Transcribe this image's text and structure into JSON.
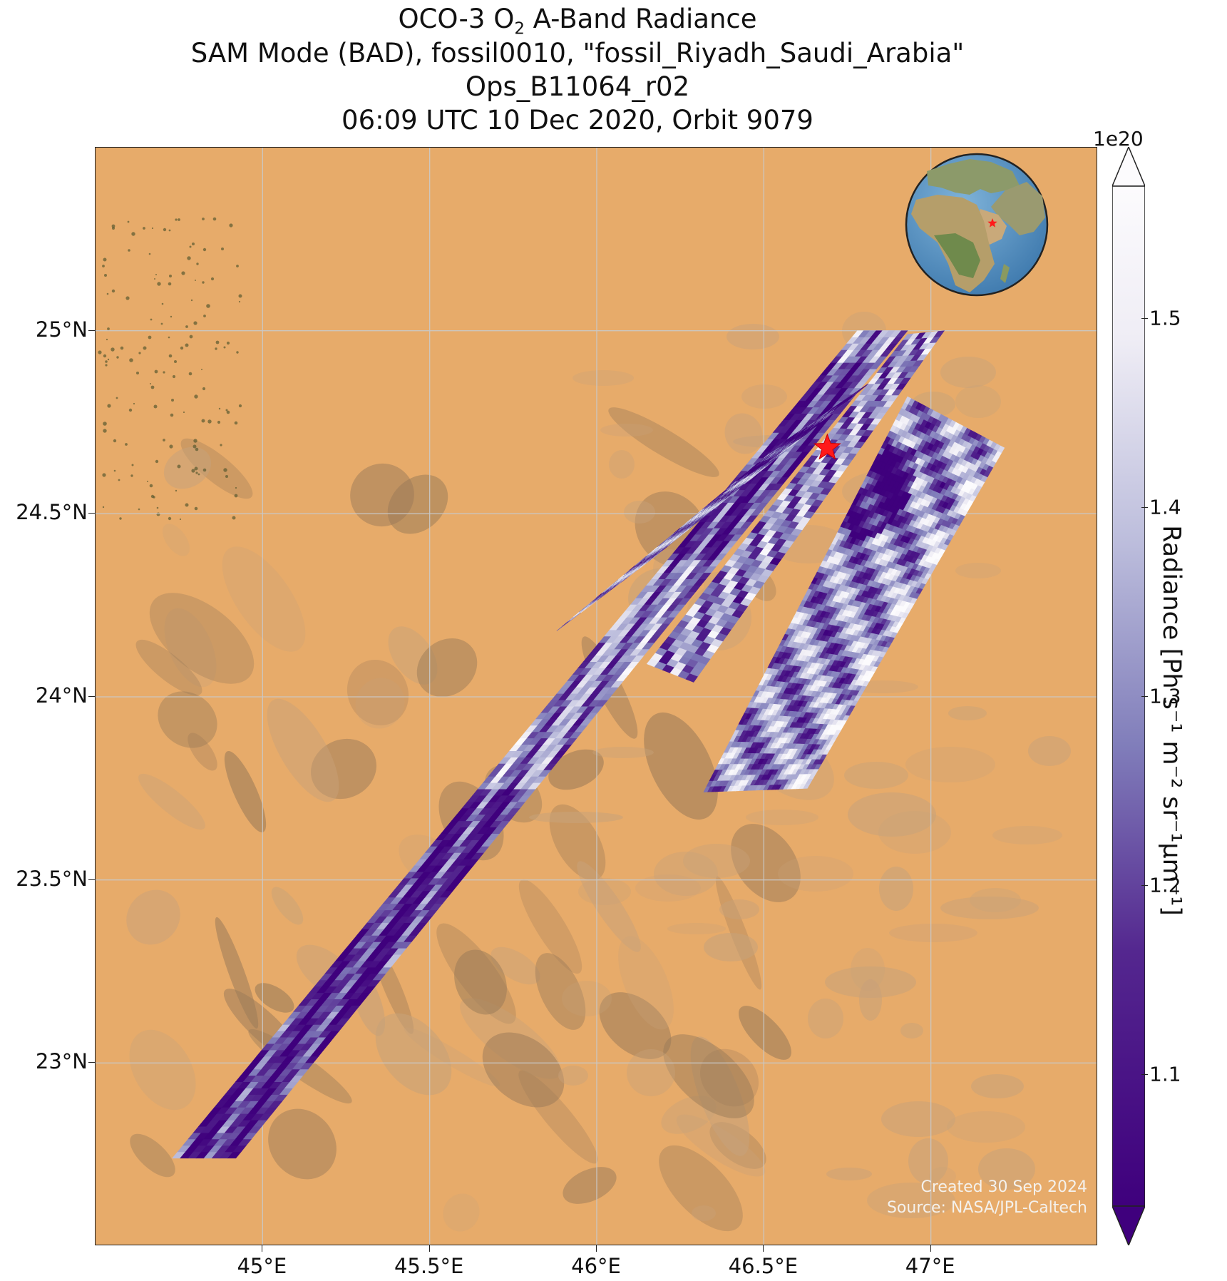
{
  "title": {
    "line1_prefix": "OCO-3 O",
    "line1_sub": "2",
    "line1_suffix": " A-Band Radiance",
    "line2": "SAM Mode (BAD), fossil0010, \"fossil_Riyadh_Saudi_Arabia\"",
    "line3": "Ops_B11064_r02",
    "line4": "06:09 UTC 10 Dec 2020, Orbit 9079"
  },
  "map": {
    "lon_range": [
      44.5,
      47.5
    ],
    "lat_range": [
      22.5,
      25.5
    ],
    "gridlines": true,
    "lat_ticks": [
      {
        "value": 25.0,
        "label": "25°N"
      },
      {
        "value": 24.5,
        "label": "24.5°N"
      },
      {
        "value": 24.0,
        "label": "24°N"
      },
      {
        "value": 23.5,
        "label": "23.5°N"
      },
      {
        "value": 23.0,
        "label": "23°N"
      }
    ],
    "lon_ticks": [
      {
        "value": 45.0,
        "label": "45°E"
      },
      {
        "value": 45.5,
        "label": "45.5°E"
      },
      {
        "value": 46.0,
        "label": "46°E"
      },
      {
        "value": 46.5,
        "label": "46.5°E"
      },
      {
        "value": 47.0,
        "label": "47°E"
      }
    ],
    "target_marker": {
      "lon": 46.69,
      "lat": 24.68,
      "color": "#ff1a1a",
      "shape": "star"
    },
    "inset_globe": {
      "placement": "top-right",
      "marker_color": "#ff1a1a"
    },
    "basemap_colors": {
      "sand": "#e9ad6c",
      "rock": "#c7a27a",
      "dark_rock": "#9a7a58"
    }
  },
  "colorbar": {
    "label": "Radiance [Ph s⁻¹ m⁻² sr⁻¹µm⁻¹]",
    "exponent": "1e20",
    "range": [
      1.03,
      1.57
    ],
    "colormap": "Purples_r",
    "extend": "both",
    "ticks": [
      {
        "value": 1.1,
        "label": "1.1"
      },
      {
        "value": 1.2,
        "label": "1.2"
      },
      {
        "value": 1.3,
        "label": "1.3"
      },
      {
        "value": 1.4,
        "label": "1.4"
      },
      {
        "value": 1.5,
        "label": "1.5"
      }
    ]
  },
  "credits": {
    "created": "Created 30 Sep 2024",
    "source": "Source: NASA/JPL-Caltech"
  }
}
